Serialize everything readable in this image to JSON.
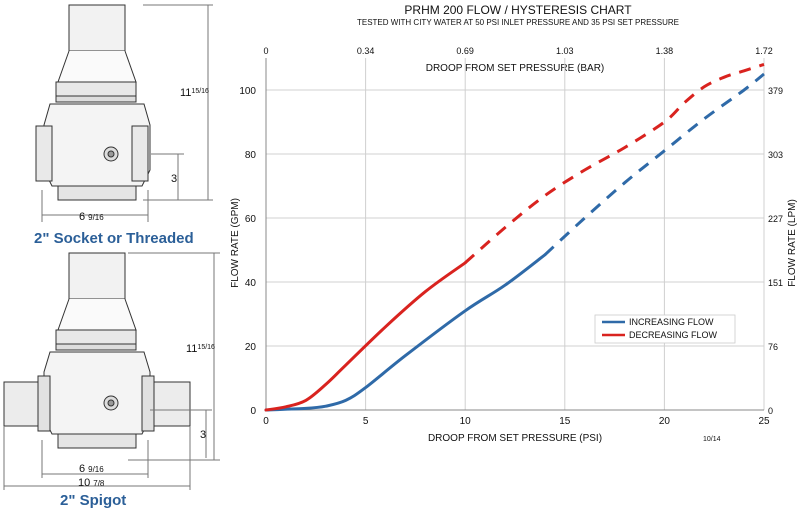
{
  "left_panel": {
    "top_drawing": {
      "caption": "2\" Socket or Threaded",
      "height_whole": "11",
      "height_frac": "15/16",
      "width_whole": "6",
      "width_frac": "9/16",
      "port_height": "3"
    },
    "bottom_drawing": {
      "caption": "2\" Spigot",
      "height_whole": "11",
      "height_frac": "15/16",
      "width_whole": "6",
      "width_frac": "9/16",
      "overall_whole": "10",
      "overall_frac": "7/8",
      "port_height": "3"
    }
  },
  "chart_data": {
    "type": "line",
    "title": "PRHM 200 FLOW / HYSTERESIS CHART",
    "subtitle": "TESTED WITH CITY WATER AT 50 PSI INLET PRESSURE AND 35 PSI SET PRESSURE",
    "xlabel": "DROOP FROM SET PRESSURE (PSI)",
    "x2label": "DROOP FROM SET PRESSURE (BAR)",
    "ylabel": "FLOW RATE (GPM)",
    "y2label": "FLOW RATE (LPM)",
    "xlim": [
      0,
      25
    ],
    "ylim": [
      0,
      110
    ],
    "x_ticks": [
      0,
      5,
      10,
      15,
      20,
      25
    ],
    "x_tick_labels": [
      "0",
      "5",
      "10",
      "15",
      "20",
      "25"
    ],
    "y_ticks": [
      0,
      20,
      40,
      60,
      80,
      100
    ],
    "y_tick_labels": [
      "0",
      "20",
      "40",
      "60",
      "80",
      "100"
    ],
    "x2_ticks": [
      0,
      5,
      10,
      15,
      20,
      25
    ],
    "x2_tick_labels": [
      "0",
      "0.34",
      "0.69",
      "1.03",
      "1.38",
      "1.72"
    ],
    "y2_ticks": [
      0,
      20,
      40,
      60,
      80,
      100
    ],
    "y2_tick_labels": [
      "0",
      "76",
      "151",
      "227",
      "303",
      "379"
    ],
    "grid": true,
    "legend_position": "center-right",
    "footnote": "10/14",
    "series": [
      {
        "name": "INCREASING FLOW",
        "color": "#2f6aa8",
        "solid": {
          "x": [
            0,
            2,
            3,
            4,
            5,
            7,
            10,
            12,
            14
          ],
          "y": [
            0,
            0.5,
            1.2,
            3,
            7,
            17,
            31,
            39,
            48.5
          ]
        },
        "dashed": {
          "x": [
            14,
            16,
            18,
            20,
            22,
            24,
            25
          ],
          "y": [
            48.5,
            60,
            71,
            81,
            91,
            100,
            105
          ]
        }
      },
      {
        "name": "DECREASING FLOW",
        "color": "#d9231f",
        "solid": {
          "x": [
            0,
            1,
            2,
            3,
            4,
            6,
            8,
            10
          ],
          "y": [
            0,
            1,
            3,
            8,
            14,
            26,
            37,
            46
          ]
        },
        "dashed": {
          "x": [
            10,
            12,
            14,
            16,
            18,
            20,
            21,
            22,
            23,
            24,
            25
          ],
          "y": [
            46,
            57,
            67,
            75,
            82,
            90,
            96,
            101,
            104,
            106,
            108
          ]
        }
      }
    ]
  }
}
